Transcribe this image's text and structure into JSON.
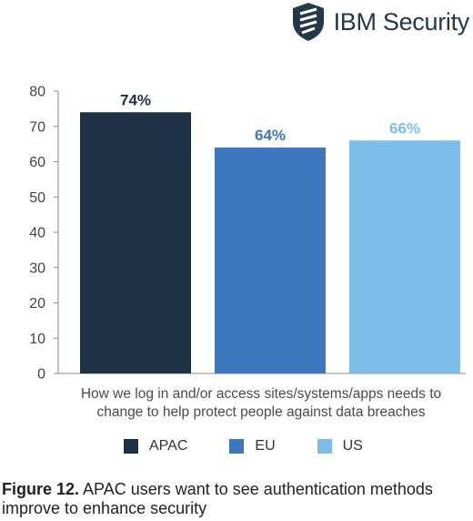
{
  "brand": {
    "name": "IBM Security",
    "icon": "ibm-security-shield-icon",
    "color": "#253847"
  },
  "chart_data": {
    "type": "bar",
    "categories": [
      "APAC",
      "EU",
      "US"
    ],
    "values": [
      74,
      64,
      66
    ],
    "data_labels": [
      "74%",
      "64%",
      "66%"
    ],
    "colors": [
      "#1e3145",
      "#3c76bd",
      "#7dbde9"
    ],
    "label_colors": [
      "#1e3145",
      "#3c76bd",
      "#7dbde9"
    ],
    "xlabel": "How we log in and/or access sites/systems/apps needs to change to help protect people against data breaches",
    "ylabel": "",
    "ylim": [
      0,
      80
    ],
    "yticks": [
      0,
      10,
      20,
      30,
      40,
      50,
      60,
      70,
      80
    ],
    "grid": false,
    "legend_position": "bottom"
  },
  "legend": [
    {
      "label": "APAC",
      "color": "#1e3145"
    },
    {
      "label": "EU",
      "color": "#3c76bd"
    },
    {
      "label": "US",
      "color": "#7dbde9"
    }
  ],
  "caption": {
    "prefix": "Figure 12.",
    "text": " APAC users want to see authentication methods improve to enhance security"
  }
}
